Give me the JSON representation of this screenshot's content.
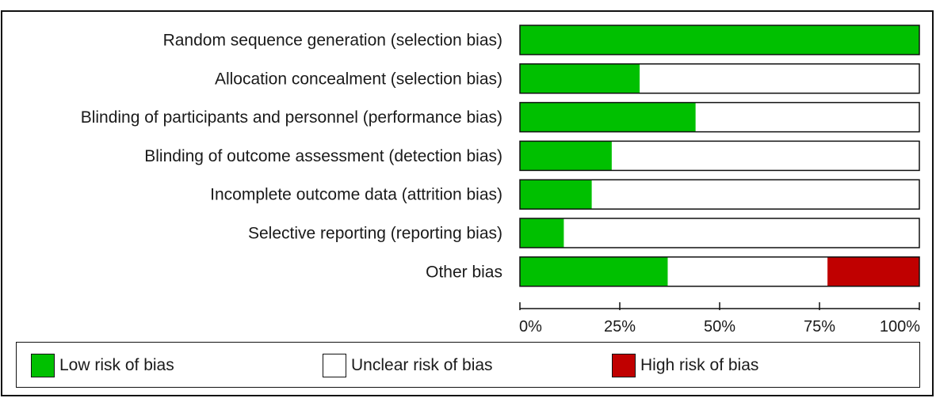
{
  "chart_data": {
    "type": "bar",
    "orientation": "horizontal",
    "stacked": true,
    "percent_scale": true,
    "categories": [
      "Random sequence generation (selection bias)",
      "Allocation concealment (selection bias)",
      "Blinding of participants and personnel (performance bias)",
      "Blinding of outcome assessment (detection bias)",
      "Incomplete outcome data (attrition bias)",
      "Selective reporting (reporting bias)",
      "Other bias"
    ],
    "series": [
      {
        "name": "Low risk of bias",
        "color": "#00c000",
        "values": [
          100,
          30,
          44,
          23,
          18,
          11,
          37
        ]
      },
      {
        "name": "Unclear risk of bias",
        "color": "#ffffff",
        "values": [
          0,
          70,
          56,
          77,
          82,
          89,
          40
        ]
      },
      {
        "name": "High risk of bias",
        "color": "#c00000",
        "values": [
          0,
          0,
          0,
          0,
          0,
          0,
          23
        ]
      }
    ],
    "xlim": [
      0,
      100
    ],
    "ticks": [
      "0%",
      "25%",
      "50%",
      "75%",
      "100%"
    ],
    "tick_values": [
      0,
      25,
      50,
      75,
      100
    ],
    "legend_position": "bottom",
    "grid": false
  }
}
